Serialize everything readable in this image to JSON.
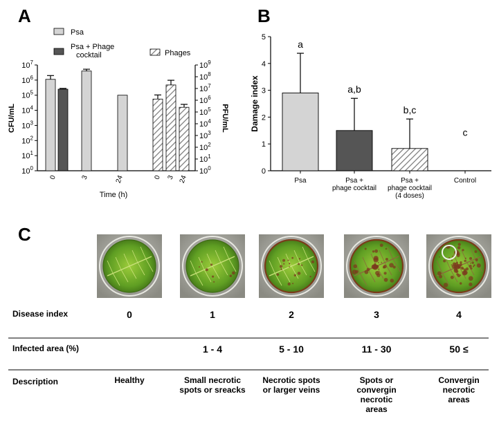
{
  "panel_labels": {
    "a": "A",
    "b": "B",
    "c": "C"
  },
  "colors": {
    "psa": "#d4d4d4",
    "cocktail": "#555555",
    "hatch_line": "#777777",
    "axis": "#000000"
  },
  "chart_data": [
    {
      "type": "bar",
      "panel": "A",
      "legend": {
        "psa": "Psa",
        "cocktail_line1": "Psa + Phage",
        "cocktail_line2": "cocktail",
        "phages": "Phages"
      },
      "xlabel": "Time (h)",
      "ylabel_left": "CFU/mL",
      "ylabel_right": "PFU/mL",
      "left_axis": {
        "scale": "log10",
        "ylim": [
          0,
          7
        ],
        "ticks": [
          "0",
          "1",
          "2",
          "3",
          "4",
          "5",
          "6",
          "7"
        ]
      },
      "right_axis": {
        "scale": "log10",
        "ylim": [
          0,
          9
        ],
        "ticks": [
          "0",
          "1",
          "2",
          "3",
          "4",
          "5",
          "6",
          "7",
          "8",
          "9"
        ]
      },
      "categories": [
        "0",
        "3",
        "24"
      ],
      "phage_categories": [
        "0",
        "3",
        "24"
      ],
      "series": [
        {
          "name": "Psa",
          "axis": "left",
          "values_log10": [
            6.05,
            6.6,
            5.0
          ],
          "err_log10": [
            0.25,
            0.12,
            0
          ]
        },
        {
          "name": "Psa + Phage cocktail",
          "axis": "left",
          "values_log10": [
            5.4,
            null,
            null
          ],
          "err_log10": [
            0.05,
            0,
            0
          ]
        },
        {
          "name": "Phages",
          "axis": "right",
          "values_log10": [
            6.1,
            7.3,
            5.4
          ],
          "err_log10": [
            0.35,
            0.4,
            0.25
          ]
        }
      ]
    },
    {
      "type": "bar",
      "panel": "B",
      "ylabel": "Damage index",
      "ylim": [
        0,
        5
      ],
      "yticks": [
        "0",
        "1",
        "2",
        "3",
        "4",
        "5"
      ],
      "categories": [
        {
          "line1": "Psa",
          "line2": "",
          "line3": ""
        },
        {
          "line1": "Psa +",
          "line2": "phage cocktail",
          "line3": ""
        },
        {
          "line1": "Psa +",
          "line2": "phage cocktail",
          "line3": "(4 doses)"
        },
        {
          "line1": "Control",
          "line2": "",
          "line3": ""
        }
      ],
      "values": [
        2.9,
        1.5,
        0.83,
        0
      ],
      "errors": [
        1.48,
        1.2,
        1.1,
        0
      ],
      "significance": [
        "a",
        "a,b",
        "b,c",
        "c"
      ],
      "fills": [
        "psa",
        "cocktail",
        "hatch",
        "none"
      ]
    }
  ],
  "panel_c": {
    "rows": {
      "disease_index_label": "Disease index",
      "infected_area_label": "Infected area (%)",
      "description_label": "Description"
    },
    "columns": [
      {
        "index": "0",
        "area": "",
        "desc": [
          "Healthy"
        ]
      },
      {
        "index": "1",
        "area": "1 - 4",
        "desc": [
          "Small necrotic",
          "spots or sreacks"
        ]
      },
      {
        "index": "2",
        "area": "5 - 10",
        "desc": [
          "Necrotic spots",
          "or larger veins"
        ]
      },
      {
        "index": "3",
        "area": "11 - 30",
        "desc": [
          "Spots or",
          "convergin",
          "necrotic",
          "areas"
        ]
      },
      {
        "index": "4",
        "area": "50 ≤",
        "desc": [
          "Convergin",
          "necrotic",
          "areas"
        ]
      }
    ],
    "leaf_damage_levels": [
      0,
      1,
      2,
      3,
      4
    ]
  }
}
